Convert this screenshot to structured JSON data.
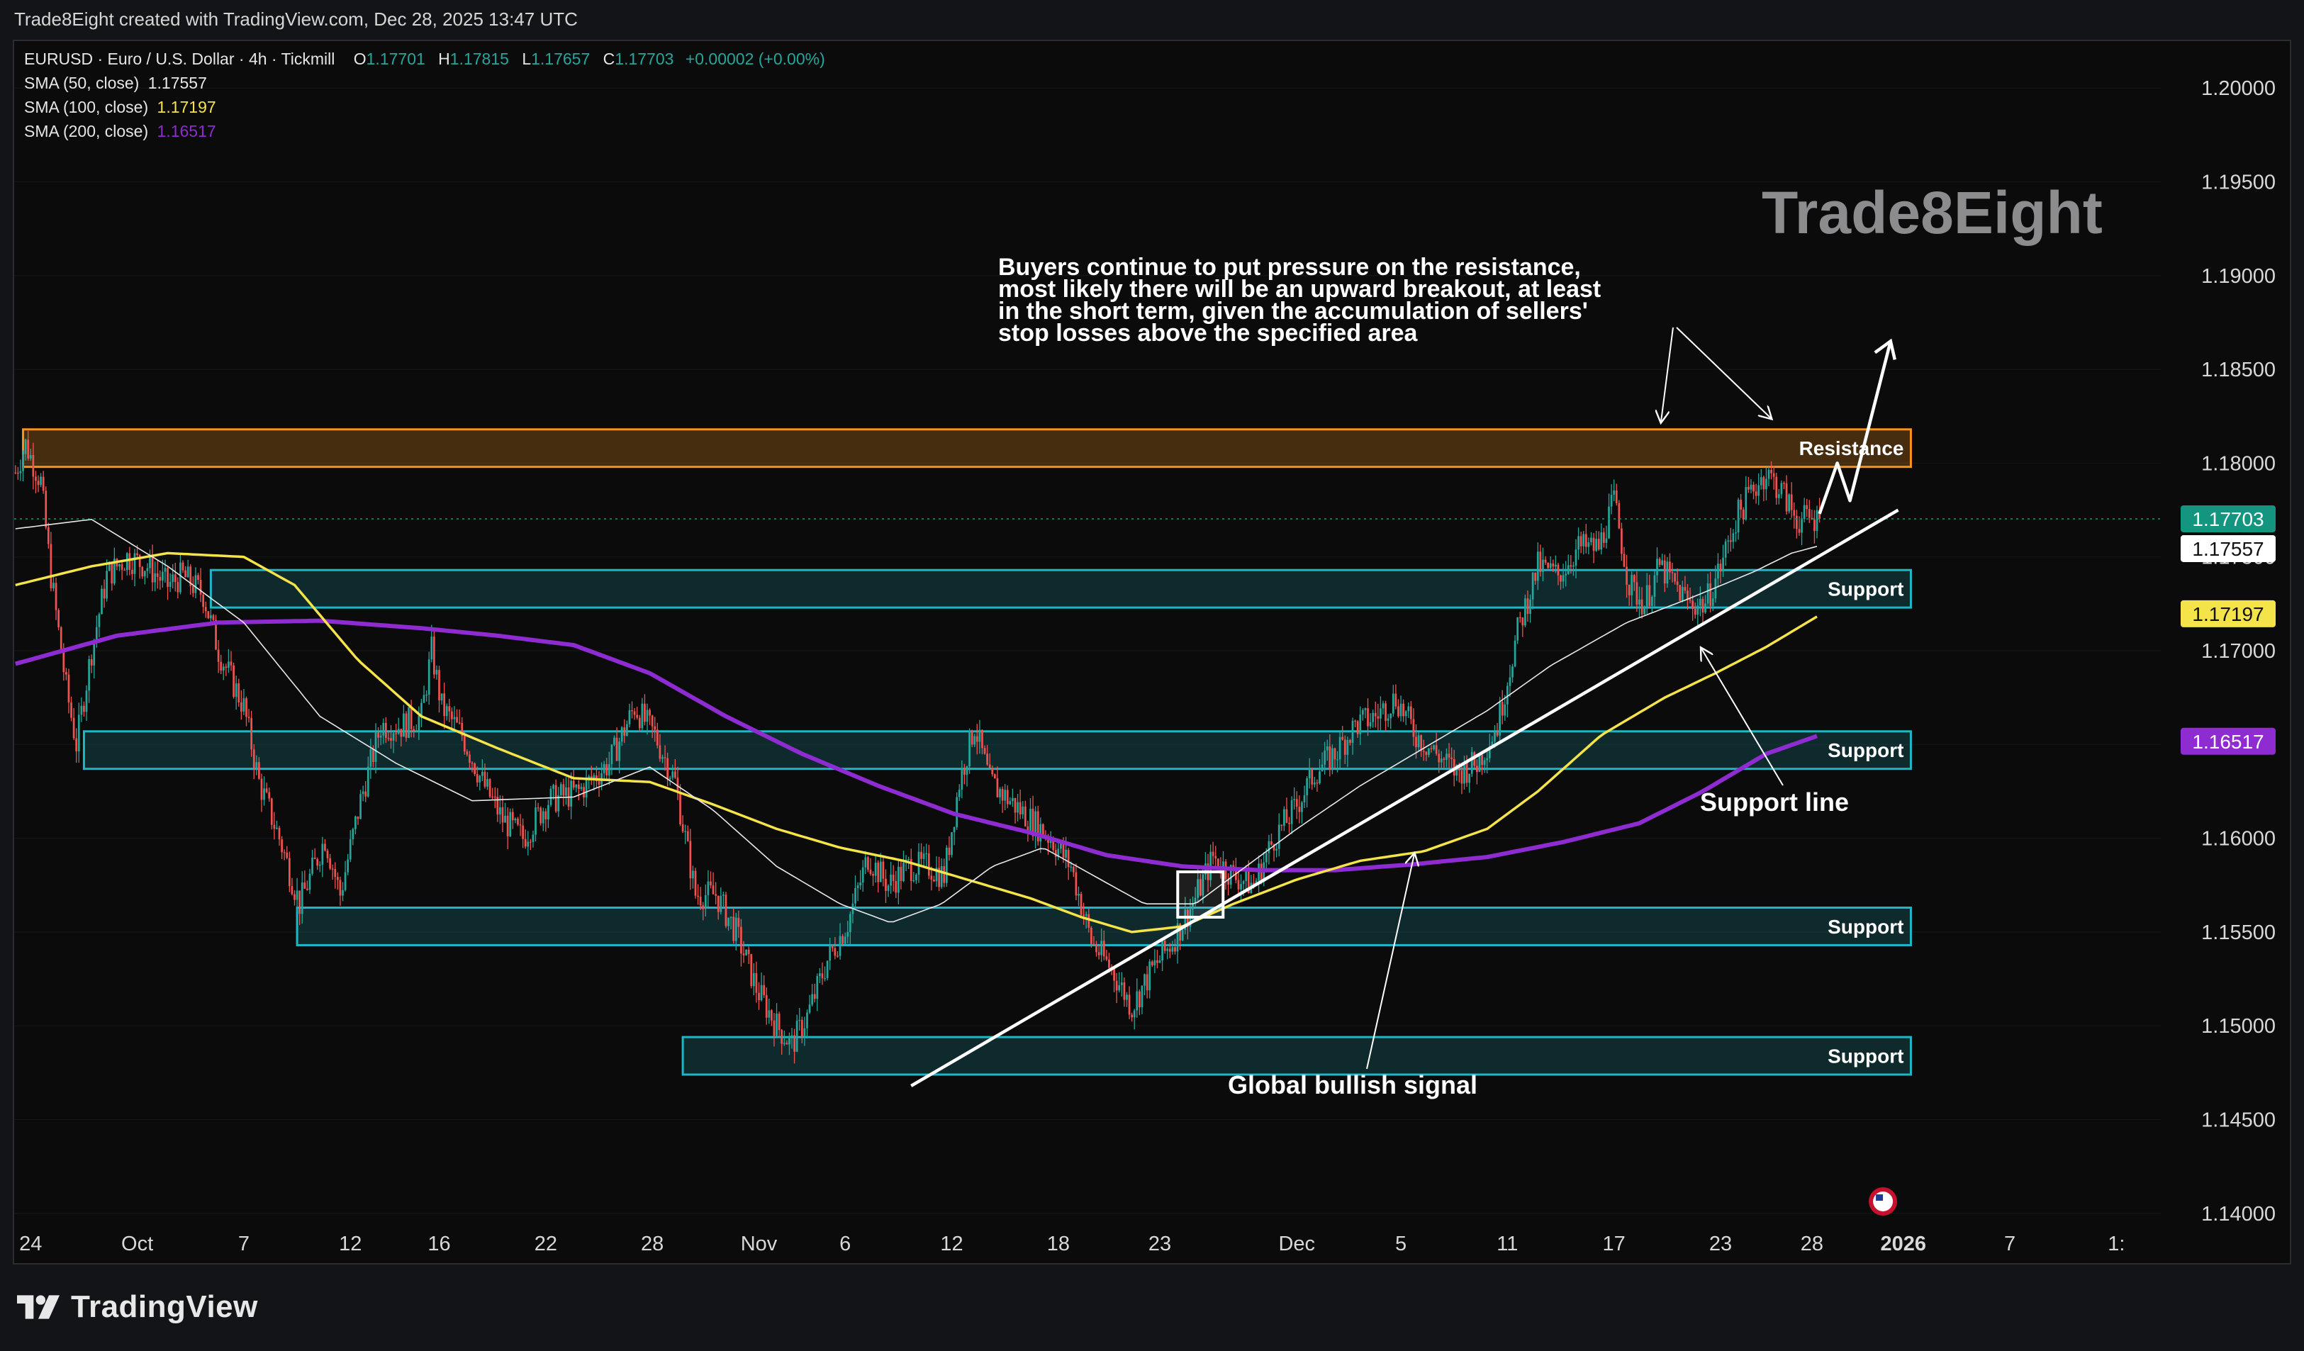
{
  "header": {
    "created_by": "Trade8Eight created with TradingView.com, Dec 28, 2025 13:47 UTC"
  },
  "legend": {
    "symbol": "EURUSD · Euro / U.S. Dollar · 4h · Tickmill",
    "o_label": "O",
    "o": "1.17701",
    "h_label": "H",
    "h": "1.17815",
    "l_label": "L",
    "l": "1.17657",
    "c_label": "C",
    "c": "1.17703",
    "change": "+0.00002 (+0.00%)",
    "sma50_label": "SMA (50, close)",
    "sma50": "1.17557",
    "sma100_label": "SMA (100, close)",
    "sma100": "1.17197",
    "sma200_label": "SMA (200, close)",
    "sma200": "1.16517"
  },
  "watermark": "Trade8Eight",
  "footer": {
    "brand": "TradingView"
  },
  "colors": {
    "up": "#26a69a",
    "down": "#ef5350",
    "sma50": "#e8e8e8",
    "sma100": "#f5e34a",
    "sma200": "#8e2bd1",
    "resistance": "#f7931a",
    "support": "#1fb6c8",
    "last_price": "#14957f"
  },
  "chart_data": {
    "type": "candlestick",
    "timeframe": "4h",
    "ylim": [
      1.1375,
      1.2025
    ],
    "y_ticks": [
      1.2,
      1.195,
      1.19,
      1.185,
      1.18,
      1.175,
      1.17,
      1.165,
      1.16,
      1.155,
      1.15,
      1.145,
      1.14
    ],
    "y_tick_labels": [
      "1.20000",
      "1.19500",
      "1.19000",
      "1.18500",
      "1.18000",
      "1.17500",
      "1.17000",
      "1.16500",
      "1.16000",
      "1.15500",
      "1.15000",
      "1.14500",
      "1.14000"
    ],
    "x_ticks": [
      {
        "label": "24",
        "bar": 6,
        "bold": false
      },
      {
        "label": "Oct",
        "bar": 48,
        "bold": false
      },
      {
        "label": "7",
        "bar": 90,
        "bold": false
      },
      {
        "label": "12",
        "bar": 132,
        "bold": false
      },
      {
        "label": "16",
        "bar": 167,
        "bold": false
      },
      {
        "label": "22",
        "bar": 209,
        "bold": false
      },
      {
        "label": "28",
        "bar": 251,
        "bold": false
      },
      {
        "label": "Nov",
        "bar": 293,
        "bold": false
      },
      {
        "label": "6",
        "bar": 327,
        "bold": false
      },
      {
        "label": "12",
        "bar": 369,
        "bold": false
      },
      {
        "label": "18",
        "bar": 411,
        "bold": false
      },
      {
        "label": "23",
        "bar": 451,
        "bold": false
      },
      {
        "label": "Dec",
        "bar": 505,
        "bold": false
      },
      {
        "label": "5",
        "bar": 546,
        "bold": false
      },
      {
        "label": "11",
        "bar": 588,
        "bold": false
      },
      {
        "label": "17",
        "bar": 630,
        "bold": false
      },
      {
        "label": "23",
        "bar": 672,
        "bold": false
      },
      {
        "label": "28",
        "bar": 708,
        "bold": false
      },
      {
        "label": "2026",
        "bar": 744,
        "bold": true
      },
      {
        "label": "7",
        "bar": 786,
        "bold": false
      },
      {
        "label": "1:",
        "bar": 828,
        "bold": false
      }
    ],
    "bars_visible": 846,
    "last_bar": 711,
    "anchors": [
      [
        0,
        1.1795
      ],
      [
        4,
        1.181
      ],
      [
        10,
        1.179
      ],
      [
        14,
        1.174
      ],
      [
        20,
        1.168
      ],
      [
        24,
        1.165
      ],
      [
        30,
        1.17
      ],
      [
        36,
        1.174
      ],
      [
        44,
        1.175
      ],
      [
        52,
        1.1745
      ],
      [
        60,
        1.1735
      ],
      [
        66,
        1.174
      ],
      [
        74,
        1.173
      ],
      [
        80,
        1.17
      ],
      [
        90,
        1.167
      ],
      [
        96,
        1.163
      ],
      [
        104,
        1.16
      ],
      [
        112,
        1.1565
      ],
      [
        122,
        1.16
      ],
      [
        128,
        1.157
      ],
      [
        136,
        1.162
      ],
      [
        144,
        1.166
      ],
      [
        152,
        1.166
      ],
      [
        160,
        1.1665
      ],
      [
        164,
        1.17
      ],
      [
        168,
        1.167
      ],
      [
        176,
        1.1655
      ],
      [
        184,
        1.163
      ],
      [
        192,
        1.161
      ],
      [
        200,
        1.16
      ],
      [
        210,
        1.162
      ],
      [
        222,
        1.1625
      ],
      [
        234,
        1.164
      ],
      [
        244,
        1.167
      ],
      [
        252,
        1.1655
      ],
      [
        260,
        1.163
      ],
      [
        268,
        1.157
      ],
      [
        276,
        1.157
      ],
      [
        284,
        1.155
      ],
      [
        292,
        1.152
      ],
      [
        300,
        1.15
      ],
      [
        306,
        1.149
      ],
      [
        312,
        1.1505
      ],
      [
        320,
        1.1535
      ],
      [
        328,
        1.1555
      ],
      [
        336,
        1.159
      ],
      [
        344,
        1.1575
      ],
      [
        352,
        1.1585
      ],
      [
        360,
        1.1585
      ],
      [
        366,
        1.158
      ],
      [
        372,
        1.163
      ],
      [
        378,
        1.166
      ],
      [
        384,
        1.163
      ],
      [
        392,
        1.162
      ],
      [
        400,
        1.161
      ],
      [
        408,
        1.16
      ],
      [
        416,
        1.1585
      ],
      [
        424,
        1.1545
      ],
      [
        432,
        1.153
      ],
      [
        440,
        1.151
      ],
      [
        448,
        1.153
      ],
      [
        456,
        1.1545
      ],
      [
        464,
        1.1565
      ],
      [
        472,
        1.159
      ],
      [
        480,
        1.158
      ],
      [
        488,
        1.1575
      ],
      [
        496,
        1.16
      ],
      [
        504,
        1.1615
      ],
      [
        512,
        1.1635
      ],
      [
        520,
        1.1645
      ],
      [
        528,
        1.166
      ],
      [
        536,
        1.1665
      ],
      [
        544,
        1.1675
      ],
      [
        552,
        1.1655
      ],
      [
        560,
        1.1645
      ],
      [
        568,
        1.1635
      ],
      [
        576,
        1.164
      ],
      [
        584,
        1.166
      ],
      [
        592,
        1.171
      ],
      [
        600,
        1.1745
      ],
      [
        608,
        1.174
      ],
      [
        616,
        1.1755
      ],
      [
        624,
        1.1755
      ],
      [
        630,
        1.178
      ],
      [
        636,
        1.1735
      ],
      [
        642,
        1.1725
      ],
      [
        648,
        1.1745
      ],
      [
        654,
        1.1735
      ],
      [
        660,
        1.1725
      ],
      [
        666,
        1.1725
      ],
      [
        672,
        1.1745
      ],
      [
        678,
        1.177
      ],
      [
        684,
        1.1785
      ],
      [
        690,
        1.1795
      ],
      [
        696,
        1.1785
      ],
      [
        702,
        1.177
      ],
      [
        711,
        1.177
      ]
    ],
    "sma50": [
      [
        0,
        1.1765
      ],
      [
        30,
        1.177
      ],
      [
        60,
        1.1745
      ],
      [
        90,
        1.1715
      ],
      [
        120,
        1.1665
      ],
      [
        150,
        1.164
      ],
      [
        180,
        1.162
      ],
      [
        220,
        1.1622
      ],
      [
        250,
        1.1638
      ],
      [
        275,
        1.1615
      ],
      [
        300,
        1.1585
      ],
      [
        325,
        1.1565
      ],
      [
        345,
        1.1555
      ],
      [
        365,
        1.1565
      ],
      [
        385,
        1.1585
      ],
      [
        405,
        1.1595
      ],
      [
        425,
        1.158
      ],
      [
        445,
        1.1565
      ],
      [
        465,
        1.1565
      ],
      [
        485,
        1.1585
      ],
      [
        505,
        1.1605
      ],
      [
        530,
        1.1628
      ],
      [
        555,
        1.1648
      ],
      [
        580,
        1.1668
      ],
      [
        605,
        1.1692
      ],
      [
        635,
        1.1715
      ],
      [
        660,
        1.1728
      ],
      [
        685,
        1.1742
      ],
      [
        700,
        1.1752
      ],
      [
        711,
        1.1756
      ]
    ],
    "sma100": [
      [
        0,
        1.1735
      ],
      [
        30,
        1.1745
      ],
      [
        60,
        1.1752
      ],
      [
        90,
        1.175
      ],
      [
        110,
        1.1735
      ],
      [
        135,
        1.1695
      ],
      [
        160,
        1.1665
      ],
      [
        190,
        1.1648
      ],
      [
        220,
        1.1632
      ],
      [
        250,
        1.163
      ],
      [
        275,
        1.1618
      ],
      [
        300,
        1.1605
      ],
      [
        325,
        1.1595
      ],
      [
        350,
        1.1588
      ],
      [
        375,
        1.1578
      ],
      [
        400,
        1.1568
      ],
      [
        420,
        1.1558
      ],
      [
        440,
        1.155
      ],
      [
        460,
        1.1553
      ],
      [
        480,
        1.1565
      ],
      [
        505,
        1.1578
      ],
      [
        530,
        1.1588
      ],
      [
        555,
        1.1593
      ],
      [
        580,
        1.1605
      ],
      [
        600,
        1.1625
      ],
      [
        625,
        1.1655
      ],
      [
        650,
        1.1675
      ],
      [
        670,
        1.1688
      ],
      [
        690,
        1.1702
      ],
      [
        711,
        1.1719
      ]
    ],
    "sma200": [
      [
        0,
        1.1693
      ],
      [
        40,
        1.1708
      ],
      [
        80,
        1.1715
      ],
      [
        120,
        1.1716
      ],
      [
        160,
        1.1712
      ],
      [
        190,
        1.1708
      ],
      [
        220,
        1.1703
      ],
      [
        250,
        1.1688
      ],
      [
        280,
        1.1665
      ],
      [
        310,
        1.1645
      ],
      [
        340,
        1.1628
      ],
      [
        370,
        1.1613
      ],
      [
        400,
        1.1603
      ],
      [
        430,
        1.1591
      ],
      [
        460,
        1.1585
      ],
      [
        490,
        1.1583
      ],
      [
        520,
        1.1583
      ],
      [
        550,
        1.1586
      ],
      [
        580,
        1.159
      ],
      [
        610,
        1.1598
      ],
      [
        640,
        1.1608
      ],
      [
        665,
        1.1625
      ],
      [
        690,
        1.1645
      ],
      [
        711,
        1.1655
      ]
    ],
    "zones": [
      {
        "kind": "resistance",
        "label": "Resistance",
        "low": 1.1798,
        "high": 1.1818,
        "from_bar": 3
      },
      {
        "kind": "support",
        "label": "Support",
        "low": 1.1723,
        "high": 1.1743,
        "from_bar": 77
      },
      {
        "kind": "support",
        "label": "Support",
        "low": 1.1637,
        "high": 1.1657,
        "from_bar": 27
      },
      {
        "kind": "support",
        "label": "Support",
        "low": 1.1543,
        "high": 1.1563,
        "from_bar": 111
      },
      {
        "kind": "support",
        "label": "Support",
        "low": 1.1474,
        "high": 1.1494,
        "from_bar": 263
      }
    ],
    "zone_end_bar": 747,
    "trendline": {
      "from": [
        353,
        1.1468
      ],
      "to": [
        742,
        1.1775
      ]
    },
    "signal_box": {
      "bar": 467,
      "price": 1.157
    },
    "projection": [
      [
        711,
        1.1773
      ],
      [
        718,
        1.18
      ],
      [
        723,
        1.178
      ],
      [
        739,
        1.1865
      ]
    ],
    "annotations": {
      "main_text": [
        "Buyers continue to put pressure on the resistance,",
        "most likely there will be an upward breakout, at least",
        "in the short term, given the accumulation of sellers'",
        "stop losses above the specified area"
      ],
      "support_line": "Support line",
      "global_signal": "Global bullish signal"
    },
    "price_labels": [
      {
        "value": 1.17703,
        "text": "1.17703",
        "role": "last"
      },
      {
        "value": 1.17557,
        "text": "1.17557",
        "role": "sma50"
      },
      {
        "value": 1.17197,
        "text": "1.17197",
        "role": "sma100"
      },
      {
        "value": 1.16517,
        "text": "1.16517",
        "role": "sma200"
      }
    ]
  }
}
